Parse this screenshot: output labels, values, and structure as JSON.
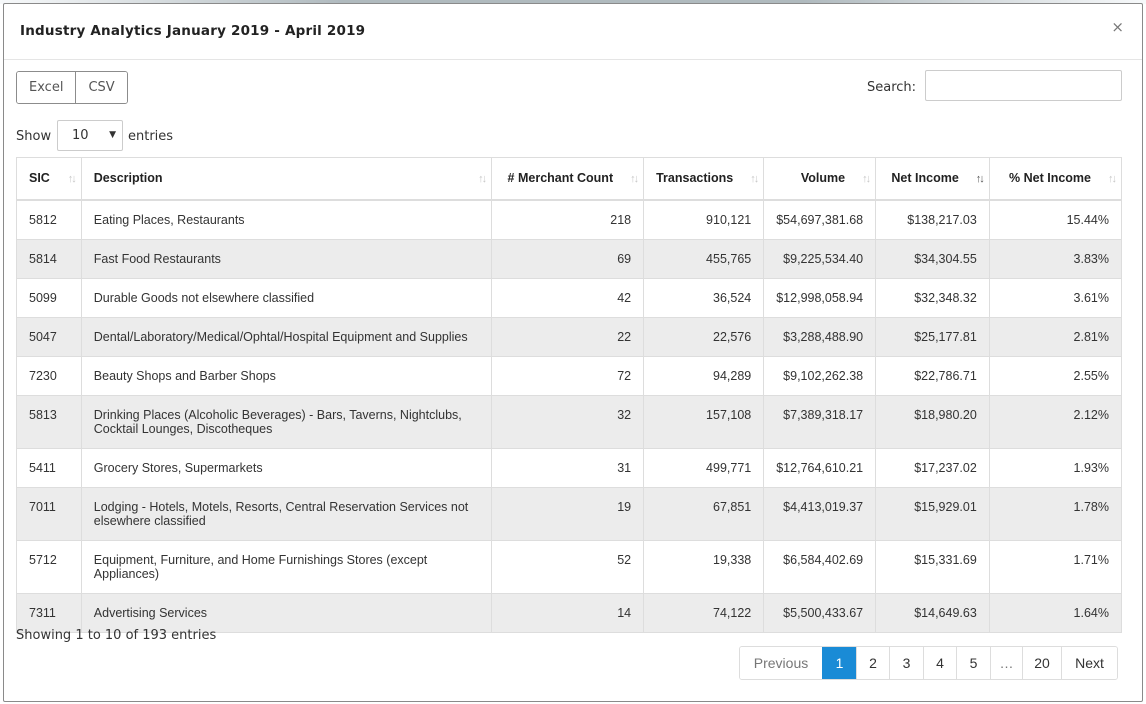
{
  "modal": {
    "title": "Industry Analytics January 2019 - April 2019",
    "close": "×"
  },
  "buttons": {
    "excel": "Excel",
    "csv": "CSV"
  },
  "search": {
    "label": "Search:",
    "value": ""
  },
  "length": {
    "show": "Show",
    "value": "10",
    "entries": "entries"
  },
  "table": {
    "headers": [
      "SIC",
      "Description",
      "# Merchant Count",
      "Transactions",
      "Volume",
      "Net Income",
      "% Net Income"
    ],
    "rows": [
      {
        "sic": "5812",
        "description": "Eating Places, Restaurants",
        "merchant_count": "218",
        "transactions": "910,121",
        "volume": "$54,697,381.68",
        "net_income": "$138,217.03",
        "pct_net_income": "15.44%"
      },
      {
        "sic": "5814",
        "description": "Fast Food Restaurants",
        "merchant_count": "69",
        "transactions": "455,765",
        "volume": "$9,225,534.40",
        "net_income": "$34,304.55",
        "pct_net_income": "3.83%"
      },
      {
        "sic": "5099",
        "description": "Durable Goods not elsewhere classified",
        "merchant_count": "42",
        "transactions": "36,524",
        "volume": "$12,998,058.94",
        "net_income": "$32,348.32",
        "pct_net_income": "3.61%"
      },
      {
        "sic": "5047",
        "description": "Dental/Laboratory/Medical/Ophtal/Hospital Equipment and Supplies",
        "merchant_count": "22",
        "transactions": "22,576",
        "volume": "$3,288,488.90",
        "net_income": "$25,177.81",
        "pct_net_income": "2.81%"
      },
      {
        "sic": "7230",
        "description": "Beauty Shops and Barber Shops",
        "merchant_count": "72",
        "transactions": "94,289",
        "volume": "$9,102,262.38",
        "net_income": "$22,786.71",
        "pct_net_income": "2.55%"
      },
      {
        "sic": "5813",
        "description": "Drinking Places (Alcoholic Beverages) - Bars, Taverns, Nightclubs, Cocktail Lounges, Discotheques",
        "merchant_count": "32",
        "transactions": "157,108",
        "volume": "$7,389,318.17",
        "net_income": "$18,980.20",
        "pct_net_income": "2.12%"
      },
      {
        "sic": "5411",
        "description": "Grocery Stores, Supermarkets",
        "merchant_count": "31",
        "transactions": "499,771",
        "volume": "$12,764,610.21",
        "net_income": "$17,237.02",
        "pct_net_income": "1.93%"
      },
      {
        "sic": "7011",
        "description": "Lodging - Hotels, Motels, Resorts, Central Reservation Services not elsewhere classified",
        "merchant_count": "19",
        "transactions": "67,851",
        "volume": "$4,413,019.37",
        "net_income": "$15,929.01",
        "pct_net_income": "1.78%"
      },
      {
        "sic": "5712",
        "description": "Equipment, Furniture, and Home Furnishings Stores (except Appliances)",
        "merchant_count": "52",
        "transactions": "19,338",
        "volume": "$6,584,402.69",
        "net_income": "$15,331.69",
        "pct_net_income": "1.71%"
      },
      {
        "sic": "7311",
        "description": "Advertising Services",
        "merchant_count": "14",
        "transactions": "74,122",
        "volume": "$5,500,433.67",
        "net_income": "$14,649.63",
        "pct_net_income": "1.64%"
      }
    ]
  },
  "info": "Showing 1 to 10 of 193 entries",
  "pagination": {
    "previous": "Previous",
    "pages": [
      "1",
      "2",
      "3",
      "4",
      "5",
      "…",
      "20"
    ],
    "next": "Next",
    "current": "1"
  },
  "colors": {
    "accent": "#1a8bd6",
    "stripe": "#ececec"
  },
  "icons": {
    "sort": "sort-arrows-icon",
    "close": "close-icon",
    "caret": "caret-down-icon"
  }
}
